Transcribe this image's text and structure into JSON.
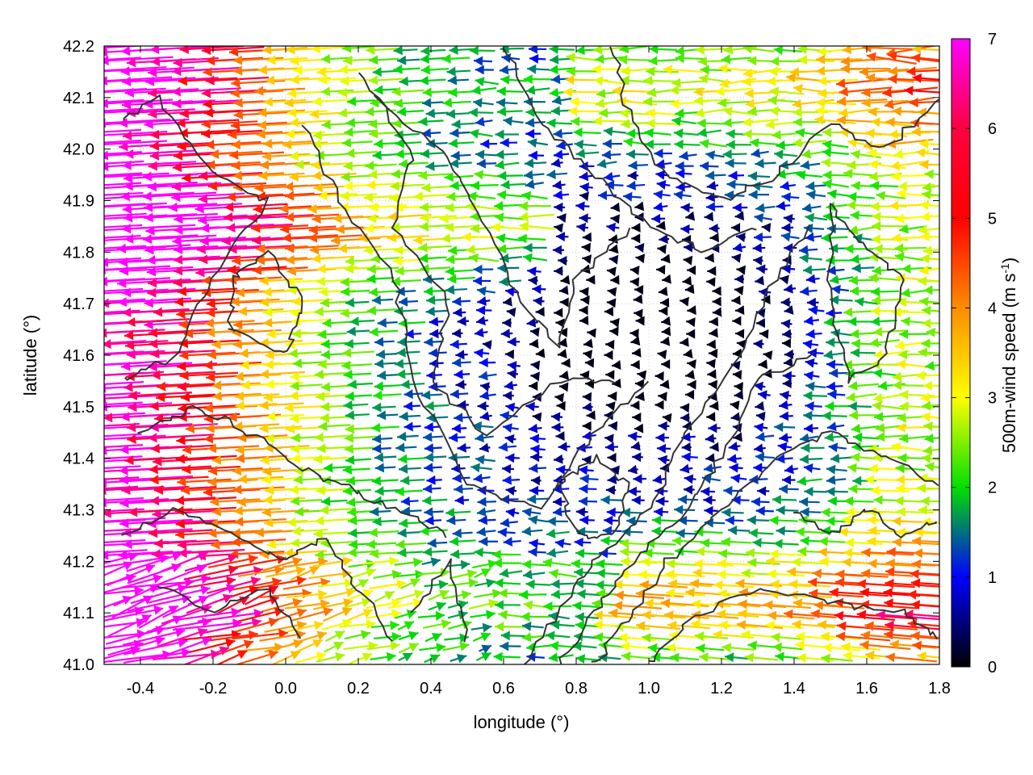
{
  "chart_data": {
    "type": "vector-field",
    "title": "",
    "xlabel": "longitude (°)",
    "ylabel": "latitude (°)",
    "xlim": [
      -0.5,
      1.8
    ],
    "ylim": [
      41.0,
      42.2
    ],
    "xticks": [
      "-0.4",
      "-0.2",
      "0.0",
      "0.2",
      "0.4",
      "0.6",
      "0.8",
      "1.0",
      "1.2",
      "1.4",
      "1.6",
      "1.8"
    ],
    "yticks": [
      "41.0",
      "41.1",
      "41.2",
      "41.3",
      "41.4",
      "41.5",
      "41.6",
      "41.7",
      "41.8",
      "41.9",
      "42.0",
      "42.1",
      "42.2"
    ],
    "grid": true,
    "colorbar": {
      "label_main": "500m-wind speed (m s",
      "label_sup": "-1",
      "label_end": ")",
      "range": [
        0,
        7
      ],
      "ticks": [
        "0",
        "1",
        "2",
        "3",
        "4",
        "5",
        "6",
        "7"
      ],
      "palette": [
        "#000000",
        "#0000ff",
        "#00e000",
        "#ffff00",
        "#ff8c00",
        "#ff0000",
        "#ff00ff"
      ]
    },
    "contour_color": "#333333"
  }
}
